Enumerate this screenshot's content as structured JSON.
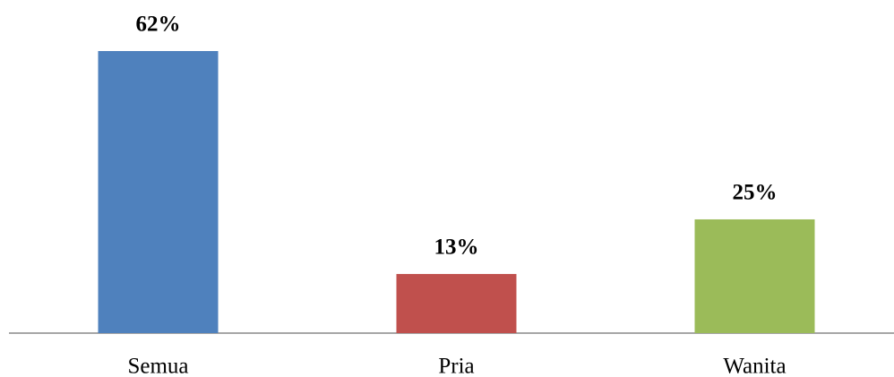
{
  "chart_data": {
    "type": "bar",
    "categories": [
      "Semua",
      "Pria",
      "Wanita"
    ],
    "values": [
      62,
      13,
      25
    ],
    "value_labels": [
      "62%",
      "13%",
      "25%"
    ],
    "colors": [
      "#4f81bd",
      "#c0504d",
      "#9bbb59"
    ]
  }
}
